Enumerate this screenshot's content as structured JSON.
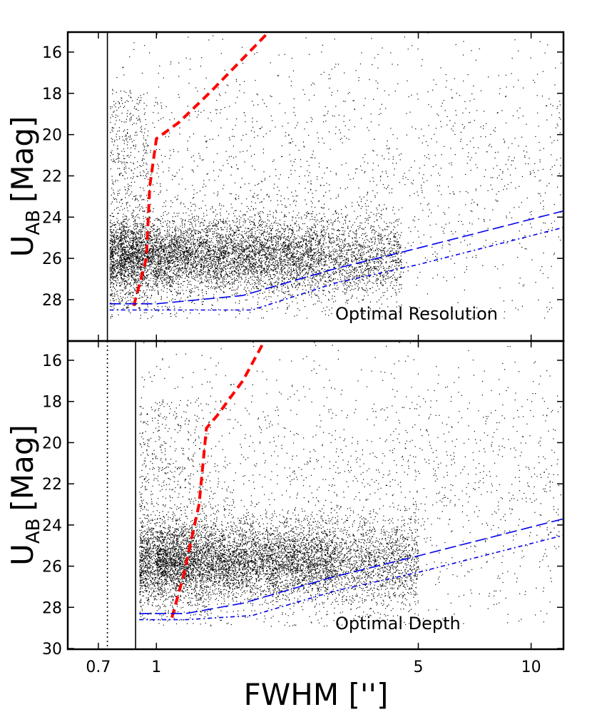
{
  "chart_data": {
    "type": "scatter",
    "xscale": "log",
    "xlabel": "FWHM ['']",
    "xlim": [
      0.58,
      12.2
    ],
    "xticks": [
      {
        "value": 0.7,
        "label": "0.7"
      },
      {
        "value": 1,
        "label": "1"
      },
      {
        "value": 5,
        "label": "5"
      },
      {
        "value": 10,
        "label": "10"
      }
    ],
    "panels": [
      {
        "id": "top",
        "ylabel_main": "U",
        "ylabel_sub": "AB",
        "ylabel_unit": "[Mag]",
        "ylim": [
          30.0,
          15.0
        ],
        "yticks": [
          {
            "value": 16,
            "label": "16"
          },
          {
            "value": 18,
            "label": "18"
          },
          {
            "value": 20,
            "label": "20"
          },
          {
            "value": 22,
            "label": "22"
          },
          {
            "value": 24,
            "label": "24"
          },
          {
            "value": 26,
            "label": "26"
          },
          {
            "value": 28,
            "label": "28"
          }
        ],
        "annotation": "Optimal Resolution",
        "vlines": [
          {
            "x": 0.74,
            "style": "solid"
          }
        ],
        "series": [
          {
            "name": "stellar locus cut",
            "style": "red-dashed",
            "x": [
              0.87,
              0.94,
              0.96,
              1.0,
              1.15,
              1.4,
              2.0
            ],
            "y": [
              28.3,
              26.0,
              22.5,
              20.2,
              19.4,
              17.9,
              15.0
            ]
          },
          {
            "name": "completeness limit",
            "style": "blue-longdash",
            "x": [
              0.75,
              1.0,
              1.7,
              3.0,
              5.0,
              12.2
            ],
            "y": [
              28.2,
              28.2,
              27.8,
              26.5,
              25.5,
              23.7
            ]
          },
          {
            "name": "detection limit",
            "style": "blue-dashdot",
            "x": [
              0.75,
              1.0,
              1.8,
              3.0,
              5.0,
              12.2
            ],
            "y": [
              28.5,
              28.5,
              28.5,
              27.2,
              26.3,
              24.5
            ]
          }
        ],
        "scatter_clouds": [
          {
            "name": "galaxies",
            "n": 5400,
            "xmin": 0.75,
            "xmax": 4.5,
            "ycenter": 26.0,
            "ysd": 1.0
          },
          {
            "name": "galaxies-core",
            "n": 2200,
            "xmin": 0.8,
            "xmax": 2.8,
            "ycenter": 25.7,
            "ysd": 0.8
          },
          {
            "name": "stars",
            "n": 500,
            "xmin": 0.75,
            "xmax": 0.95,
            "ycenter": 23.0,
            "ysd": 3.0
          },
          {
            "name": "sparse",
            "n": 1700,
            "xmin": 0.75,
            "xmax": 12.0,
            "ycenter": 22.0,
            "ysd": 3.4
          }
        ]
      },
      {
        "id": "bottom",
        "ylabel_main": "U",
        "ylabel_sub": "AB",
        "ylabel_unit": "[Mag]",
        "ylim": [
          30.0,
          15.0
        ],
        "yticks": [
          {
            "value": 16,
            "label": "16"
          },
          {
            "value": 18,
            "label": "18"
          },
          {
            "value": 20,
            "label": "20"
          },
          {
            "value": 22,
            "label": "22"
          },
          {
            "value": 24,
            "label": "24"
          },
          {
            "value": 26,
            "label": "26"
          },
          {
            "value": 28,
            "label": "28"
          },
          {
            "value": 30,
            "label": "30"
          }
        ],
        "annotation": "Optimal Depth",
        "vlines": [
          {
            "x": 0.74,
            "style": "dotted"
          },
          {
            "x": 0.88,
            "style": "solid"
          }
        ],
        "series": [
          {
            "name": "stellar locus cut",
            "style": "red-dashed",
            "x": [
              1.1,
              1.18,
              1.3,
              1.36,
              1.45,
              1.7,
              1.95
            ],
            "y": [
              28.5,
              26.5,
              23.0,
              19.3,
              18.7,
              17.0,
              15.0
            ]
          },
          {
            "name": "completeness limit",
            "style": "blue-longdash",
            "x": [
              0.9,
              1.2,
              1.7,
              3.0,
              5.0,
              12.2
            ],
            "y": [
              28.3,
              28.3,
              27.8,
              26.5,
              25.5,
              23.7
            ]
          },
          {
            "name": "detection limit",
            "style": "blue-dashdot",
            "x": [
              0.9,
              1.2,
              1.8,
              3.0,
              5.0,
              12.2
            ],
            "y": [
              28.6,
              28.6,
              28.4,
              27.2,
              26.3,
              24.5
            ]
          }
        ],
        "scatter_clouds": [
          {
            "name": "galaxies",
            "n": 5400,
            "xmin": 0.9,
            "xmax": 5.0,
            "ycenter": 25.8,
            "ysd": 1.1
          },
          {
            "name": "galaxies-core",
            "n": 2200,
            "xmin": 1.0,
            "xmax": 3.0,
            "ycenter": 25.7,
            "ysd": 0.8
          },
          {
            "name": "stars",
            "n": 500,
            "xmin": 0.9,
            "xmax": 1.4,
            "ycenter": 22.0,
            "ysd": 3.2
          },
          {
            "name": "sparse",
            "n": 1700,
            "xmin": 0.9,
            "xmax": 12.0,
            "ycenter": 22.0,
            "ysd": 3.4
          }
        ]
      }
    ]
  }
}
